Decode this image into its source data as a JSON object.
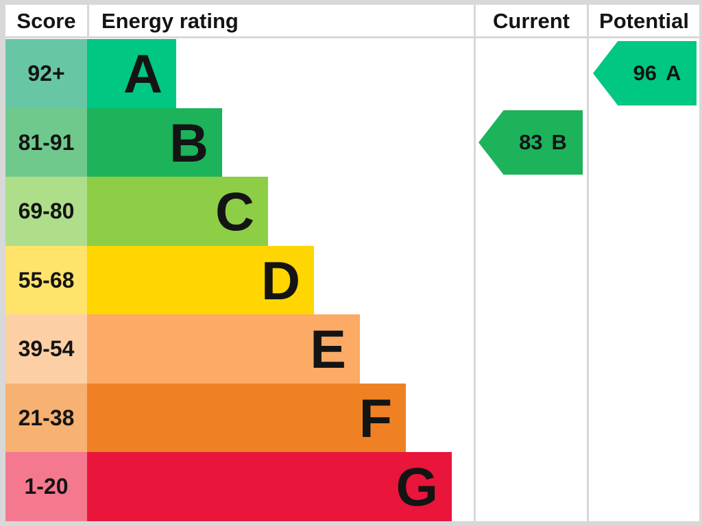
{
  "headers": {
    "score": "Score",
    "energy_rating": "Energy rating",
    "current": "Current",
    "potential": "Potential"
  },
  "chart_data": {
    "type": "bar",
    "title": "Energy rating",
    "description": "EPC energy efficiency rating chart with stepped band bars and current/potential score arrows",
    "grid": false,
    "legend_position": "none",
    "bands": [
      {
        "letter": "A",
        "score_range": "92+",
        "score_min": 92,
        "score_max": 100,
        "color": "#00c781",
        "tint": "#67c7a4"
      },
      {
        "letter": "B",
        "score_range": "81-91",
        "score_min": 81,
        "score_max": 91,
        "color": "#1cb35b",
        "tint": "#70c98c"
      },
      {
        "letter": "C",
        "score_range": "69-80",
        "score_min": 69,
        "score_max": 80,
        "color": "#8dce46",
        "tint": "#aede8a"
      },
      {
        "letter": "D",
        "score_range": "55-68",
        "score_min": 55,
        "score_max": 68,
        "color": "#ffd502",
        "tint": "#ffe36a"
      },
      {
        "letter": "E",
        "score_range": "39-54",
        "score_min": 39,
        "score_max": 54,
        "color": "#fcaa65",
        "tint": "#fcd0a4"
      },
      {
        "letter": "F",
        "score_range": "21-38",
        "score_min": 21,
        "score_max": 38,
        "color": "#ef8023",
        "tint": "#f6b173"
      },
      {
        "letter": "G",
        "score_range": "1-20",
        "score_min": 1,
        "score_max": 20,
        "color": "#e9153b",
        "tint": "#f4798f"
      }
    ],
    "markers": {
      "current": {
        "value": "83",
        "letter": "B",
        "band_index": 1,
        "color": "#1cb35b"
      },
      "potential": {
        "value": "96",
        "letter": "A",
        "band_index": 0,
        "color": "#00c781"
      }
    }
  },
  "colors": {
    "frame_border": "#d8d8d8",
    "background": "#ffffff",
    "text": "#141414"
  }
}
